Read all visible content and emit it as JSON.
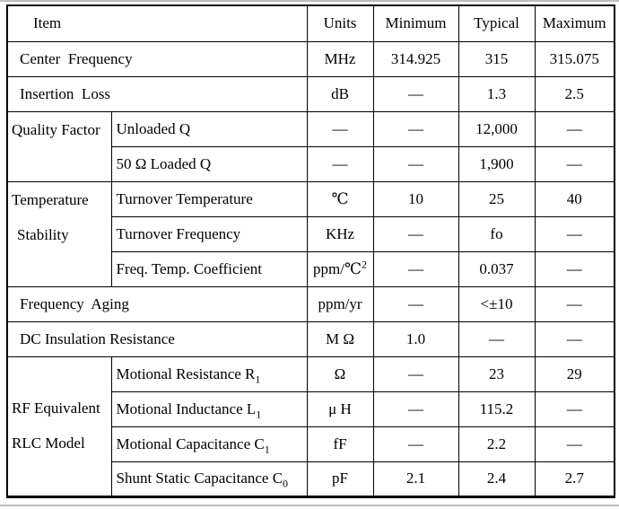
{
  "header": {
    "item": "Item",
    "units": "Units",
    "minimum": "Minimum",
    "typical": "Typical",
    "maximum": "Maximum"
  },
  "groups": {
    "quality_factor": "Quality Factor",
    "temperature_stability": {
      "line1": "Temperature",
      "line2": "Stability"
    },
    "rf_equivalent_rlc_model": {
      "line1": "RF Equivalent",
      "line2": "RLC Model"
    }
  },
  "rows": {
    "center_frequency": {
      "item": "Center  Frequency",
      "units": "MHz",
      "min": "314.925",
      "typ": "315",
      "max": "315.075"
    },
    "insertion_loss": {
      "item": "Insertion  Loss",
      "units": "dB",
      "min": "—",
      "typ": "1.3",
      "max": "2.5"
    },
    "unloaded_q": {
      "item": "Unloaded Q",
      "units": "—",
      "min": "—",
      "typ": "12,000",
      "max": "—"
    },
    "loaded_q": {
      "item": "50 Ω Loaded Q",
      "units": "—",
      "min": "—",
      "typ": "1,900",
      "max": "—"
    },
    "turnover_temperature": {
      "item": "Turnover Temperature",
      "units": "℃",
      "min": "10",
      "typ": "25",
      "max": "40"
    },
    "turnover_frequency": {
      "item": "Turnover Frequency",
      "units": "KHz",
      "min": "—",
      "typ": "fo",
      "max": "—"
    },
    "freq_temp_coefficient": {
      "item": "Freq. Temp. Coefficient",
      "units_base": "ppm/℃",
      "units_sup": "2",
      "min": "—",
      "typ": "0.037",
      "max": "—"
    },
    "frequency_aging": {
      "item": "Frequency  Aging",
      "units": "ppm/yr",
      "min": "—",
      "typ": "<±10",
      "max": "—"
    },
    "dc_insulation_resistance": {
      "item": "DC Insulation Resistance",
      "units": "M Ω",
      "min": "1.0",
      "typ": "—",
      "max": "—"
    },
    "motional_resistance": {
      "item_base": "Motional Resistance R",
      "item_sub": "1",
      "units": "Ω",
      "min": "—",
      "typ": "23",
      "max": "29"
    },
    "motional_inductance": {
      "item_base": "Motional Inductance L",
      "item_sub": "1",
      "units": "μ H",
      "min": "—",
      "typ": "115.2",
      "max": "—"
    },
    "motional_capacitance": {
      "item_base": "Motional Capacitance C",
      "item_sub": "1",
      "units": "fF",
      "min": "—",
      "typ": "2.2",
      "max": "—"
    },
    "shunt_static_capacitance": {
      "item_base": "Shunt Static Capacitance C",
      "item_sub": "0",
      "units": "pF",
      "min": "2.1",
      "typ": "2.4",
      "max": "2.7"
    }
  },
  "colors": {
    "border": "#000000",
    "text": "#000000",
    "background": "#ffffff",
    "page_edge": "#bdbdbd"
  }
}
